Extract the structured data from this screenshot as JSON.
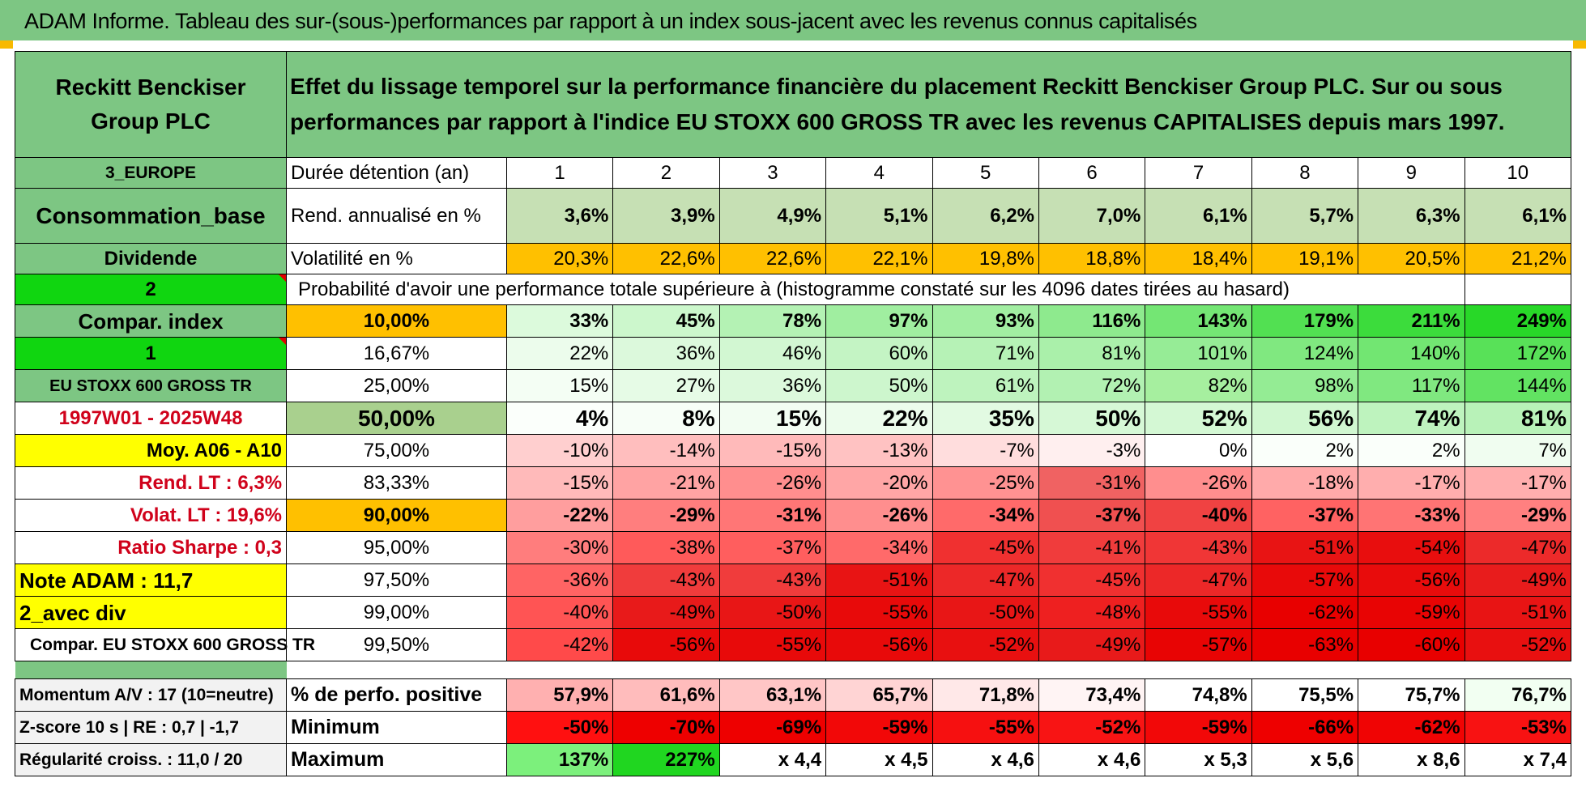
{
  "banner": "ADAM Informe. Tableau des sur-(sous-)performances par rapport à un index sous-jacent avec les revenus connus capitalisés",
  "header": {
    "company": "Reckitt Benckiser Group PLC",
    "description": "Effet du lissage temporel sur la performance financière du placement Reckitt Benckiser Group PLC. Sur ou sous performances par rapport à l'indice EU STOXX 600 GROSS TR avec les revenus CAPITALISES depuis mars 1997."
  },
  "left": {
    "region": "3_EUROPE",
    "sector": "Consommation_base",
    "type": "Dividende",
    "code1": "2",
    "compar_index": "Compar. index",
    "code2": "1",
    "index_name": "EU STOXX 600 GROSS TR",
    "period": "1997W01 - 2025W48",
    "moy": "Moy. A06 - A10",
    "rend_lt": "Rend. LT :    6,3%",
    "volat_lt": "Volat. LT :    19,6%",
    "sharpe": "Ratio Sharpe :    0,3",
    "note": "Note ADAM : 11,7",
    "avec_div": "2_avec div",
    "compar_full": "Compar. EU STOXX 600 GROSS TR",
    "momentum": "Momentum A/V : 17 (10=neutre)",
    "zscore": "Z-score 10 s | RE : 0,7 | -1,7",
    "regularite": "Régularité croiss. : 11,0 / 20"
  },
  "row_labels": {
    "duree": "Durée détention (an)",
    "rend": "Rend. annualisé en %",
    "volat": "Volatilité en %",
    "proba": "Probabilité d'avoir une performance totale supérieure à (histogramme constaté sur les 4096 dates tirées au hasard)",
    "pct_pos": "% de perfo. positive",
    "minimum": "Minimum",
    "maximum": "Maximum"
  },
  "years": [
    "1",
    "2",
    "3",
    "4",
    "5",
    "6",
    "7",
    "8",
    "9",
    "10"
  ],
  "rend": [
    "3,6%",
    "3,9%",
    "4,9%",
    "5,1%",
    "6,2%",
    "7,0%",
    "6,1%",
    "5,7%",
    "6,3%",
    "6,1%"
  ],
  "volat": [
    "20,3%",
    "22,6%",
    "22,6%",
    "22,1%",
    "19,8%",
    "18,8%",
    "18,4%",
    "19,1%",
    "20,5%",
    "21,2%"
  ],
  "thresholds": [
    "10,00%",
    "16,67%",
    "25,00%",
    "50,00%",
    "75,00%",
    "83,33%",
    "90,00%",
    "95,00%",
    "97,50%",
    "99,00%",
    "99,50%"
  ],
  "proba": [
    [
      "33%",
      "45%",
      "78%",
      "97%",
      "93%",
      "116%",
      "143%",
      "179%",
      "211%",
      "249%"
    ],
    [
      "22%",
      "36%",
      "46%",
      "60%",
      "71%",
      "81%",
      "101%",
      "124%",
      "140%",
      "172%"
    ],
    [
      "15%",
      "27%",
      "36%",
      "50%",
      "61%",
      "72%",
      "82%",
      "98%",
      "117%",
      "144%"
    ],
    [
      "4%",
      "8%",
      "15%",
      "22%",
      "35%",
      "50%",
      "52%",
      "56%",
      "74%",
      "81%"
    ],
    [
      "-10%",
      "-14%",
      "-15%",
      "-13%",
      "-7%",
      "-3%",
      "0%",
      "2%",
      "2%",
      "7%"
    ],
    [
      "-15%",
      "-21%",
      "-26%",
      "-20%",
      "-25%",
      "-31%",
      "-26%",
      "-18%",
      "-17%",
      "-17%"
    ],
    [
      "-22%",
      "-29%",
      "-31%",
      "-26%",
      "-34%",
      "-37%",
      "-40%",
      "-37%",
      "-33%",
      "-29%"
    ],
    [
      "-30%",
      "-38%",
      "-37%",
      "-34%",
      "-45%",
      "-41%",
      "-43%",
      "-51%",
      "-54%",
      "-47%"
    ],
    [
      "-36%",
      "-43%",
      "-43%",
      "-51%",
      "-47%",
      "-45%",
      "-47%",
      "-57%",
      "-56%",
      "-49%"
    ],
    [
      "-40%",
      "-49%",
      "-50%",
      "-55%",
      "-50%",
      "-48%",
      "-55%",
      "-62%",
      "-59%",
      "-51%"
    ],
    [
      "-42%",
      "-56%",
      "-55%",
      "-56%",
      "-52%",
      "-49%",
      "-57%",
      "-63%",
      "-60%",
      "-52%"
    ]
  ],
  "proba_colors": [
    [
      "#dcfadc",
      "#ccf7cc",
      "#b4f2b4",
      "#a0eea0",
      "#a2eea2",
      "#8eea8e",
      "#74e674",
      "#52e052",
      "#3cdc3c",
      "#28d828"
    ],
    [
      "#ecfcec",
      "#dcf9dc",
      "#d2f7d2",
      "#c4f4c4",
      "#b6f2b6",
      "#aaf0aa",
      "#96ec96",
      "#80e880",
      "#72e672",
      "#58e158"
    ],
    [
      "#f4fef4",
      "#e6fbe6",
      "#dcf9dc",
      "#cdf6cd",
      "#bef3be",
      "#b2f1b2",
      "#a6ef9f",
      "#94ec94",
      "#80e880",
      "#62e362"
    ],
    [
      "#fbfffb",
      "#f7fef7",
      "#f2fdf2",
      "#ecfcec",
      "#e2fae2",
      "#d6f8d6",
      "#d4f8d4",
      "#d0f7d0",
      "#bef3be",
      "#b8f2b8"
    ],
    [
      "#ffcfcf",
      "#ffbebe",
      "#ffbaba",
      "#ffc2c2",
      "#ffdddd",
      "#ffefef",
      "#ffffff",
      "#fafffa",
      "#fafffa",
      "#f0fdf0"
    ],
    [
      "#ffbaba",
      "#ffa3a3",
      "#ff8e8e",
      "#ffa6a6",
      "#ff9292",
      "#f06262",
      "#ff8e8e",
      "#ffaaaa",
      "#ffaeae",
      "#ffaeae"
    ],
    [
      "#ff9e9e",
      "#ff7e7e",
      "#ff7676",
      "#ff8e8e",
      "#ff6a6a",
      "#f05050",
      "#f04242",
      "#ff6262",
      "#ff7474",
      "#ff8080"
    ],
    [
      "#ff7d7d",
      "#ff5a5a",
      "#ff5e5e",
      "#ff6a6a",
      "#f03030",
      "#f03c3c",
      "#f03636",
      "#e81414",
      "#e80e0e",
      "#ec2a2a"
    ],
    [
      "#ff6464",
      "#f03c3c",
      "#f03c3c",
      "#e81414",
      "#ec2828",
      "#f03030",
      "#ec2828",
      "#e80a0a",
      "#e80c0c",
      "#e81c1c"
    ],
    [
      "#ff5454",
      "#e81a1a",
      "#e81616",
      "#e80a0a",
      "#e81616",
      "#ee2020",
      "#e80a0a",
      "#e80000",
      "#e80404",
      "#e81414"
    ],
    [
      "#ff4a4a",
      "#e80a0a",
      "#e80a0a",
      "#e80a0a",
      "#e81010",
      "#e81a1a",
      "#e80404",
      "#e80000",
      "#e80000",
      "#e81010"
    ]
  ],
  "pct_pos": [
    "57,9%",
    "61,6%",
    "63,1%",
    "65,7%",
    "71,8%",
    "73,4%",
    "74,8%",
    "75,5%",
    "75,7%",
    "76,7%"
  ],
  "pct_pos_colors": [
    "#ffb0b0",
    "#ffbcbc",
    "#ffc6c6",
    "#ffd4d4",
    "#ffe8e8",
    "#fff4f4",
    "#ffffff",
    "#ffffff",
    "#ffffff",
    "#f2fff2"
  ],
  "minimum": [
    "-50%",
    "-70%",
    "-69%",
    "-59%",
    "-55%",
    "-52%",
    "-59%",
    "-66%",
    "-62%",
    "-53%"
  ],
  "minimum_colors": [
    "#ff1010",
    "#ee0000",
    "#ee0000",
    "#f20808",
    "#f61010",
    "#f81414",
    "#f20808",
    "#ee0000",
    "#f00404",
    "#f81212"
  ],
  "maximum": [
    "137%",
    "227%",
    "x 4,4",
    "x 4,5",
    "x 4,6",
    "x 4,6",
    "x 5,3",
    "x 5,6",
    "x 8,6",
    "x 7,4"
  ],
  "maximum_colors": [
    "#7cf07c",
    "#20d620",
    "#ffffff",
    "#ffffff",
    "#ffffff",
    "#ffffff",
    "#ffffff",
    "#ffffff",
    "#ffffff",
    "#ffffff"
  ]
}
